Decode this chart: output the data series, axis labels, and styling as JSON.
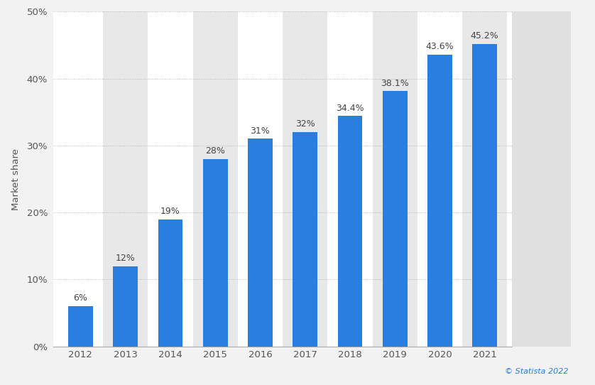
{
  "years": [
    "2012",
    "2013",
    "2014",
    "2015",
    "2016",
    "2017",
    "2018",
    "2019",
    "2020",
    "2021"
  ],
  "values": [
    6,
    12,
    19,
    28,
    31,
    32,
    34.4,
    38.1,
    43.6,
    45.2
  ],
  "labels": [
    "6%",
    "12%",
    "19%",
    "28%",
    "31%",
    "32%",
    "34.4%",
    "38.1%",
    "43.6%",
    "45.2%"
  ],
  "bar_color": "#2a7de1",
  "ylabel": "Market share",
  "ylim": [
    0,
    50
  ],
  "yticks": [
    0,
    10,
    20,
    30,
    40,
    50
  ],
  "background_color": "#f2f2f2",
  "plot_bg_color": "#ffffff",
  "col_shade_color": "#e8e8e8",
  "grid_color": "#aaaaaa",
  "label_fontsize": 9,
  "tick_fontsize": 9.5,
  "ylabel_fontsize": 9.5,
  "bar_width": 0.55,
  "statista_text": "© Statista 2022",
  "statista_color": "#2a7de1",
  "right_panel_color": "#e0e0e0"
}
